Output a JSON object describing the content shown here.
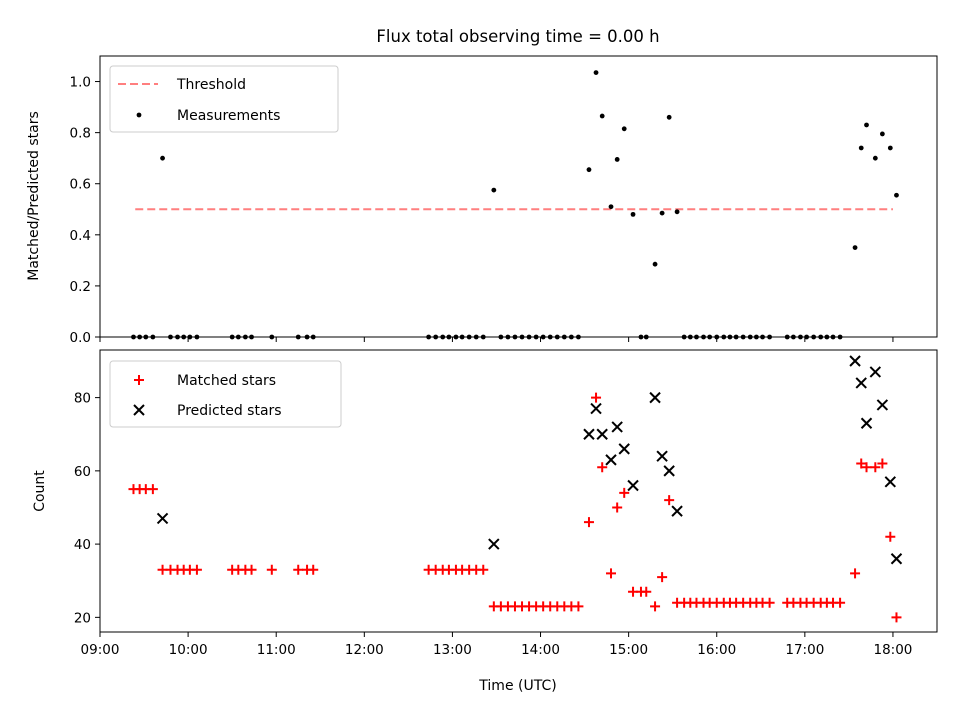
{
  "chart_data": {
    "title": "Flux total observing time = 0.00 h",
    "xlabel": "Time (UTC)",
    "x_unit": "hours UTC (decimal)",
    "xlim": [
      9.0,
      18.5
    ],
    "xticks": [
      9,
      10,
      11,
      12,
      13,
      14,
      15,
      16,
      17,
      18
    ],
    "xtick_labels": [
      "09:00",
      "10:00",
      "11:00",
      "12:00",
      "13:00",
      "14:00",
      "15:00",
      "16:00",
      "17:00",
      "18:00"
    ],
    "panels": [
      {
        "type": "scatter",
        "ylabel": "Matched/Predicted stars",
        "ylim": [
          0,
          1.1
        ],
        "yticks": [
          0.0,
          0.2,
          0.4,
          0.6,
          0.8,
          1.0
        ],
        "ytick_labels": [
          "0.0",
          "0.2",
          "0.4",
          "0.6",
          "0.8",
          "1.0"
        ],
        "legend": [
          "Threshold",
          "Measurements"
        ],
        "legend_position": "top-left",
        "threshold": {
          "name": "Threshold",
          "y": 0.5,
          "x_range": [
            9.4,
            18.0
          ],
          "color": "#ff7f7f",
          "style": "dashed"
        },
        "series": [
          {
            "name": "Measurements",
            "marker": "dot",
            "color": "#000000",
            "x": [
              9.38,
              9.45,
              9.52,
              9.6,
              9.71,
              9.8,
              9.88,
              9.95,
              10.02,
              10.1,
              10.5,
              10.57,
              10.65,
              10.72,
              10.95,
              11.25,
              11.35,
              11.42,
              12.73,
              12.81,
              12.89,
              12.96,
              13.04,
              13.11,
              13.19,
              13.27,
              13.35,
              13.47,
              13.55,
              13.63,
              13.71,
              13.79,
              13.87,
              13.95,
              14.03,
              14.11,
              14.19,
              14.27,
              14.35,
              14.43,
              14.55,
              14.63,
              14.7,
              14.8,
              14.87,
              14.95,
              15.05,
              15.14,
              15.2,
              15.3,
              15.38,
              15.46,
              15.55,
              15.63,
              15.7,
              15.77,
              15.85,
              15.92,
              16.0,
              16.08,
              16.15,
              16.22,
              16.3,
              16.38,
              16.45,
              16.52,
              16.6,
              16.8,
              16.87,
              16.95,
              17.02,
              17.1,
              17.18,
              17.25,
              17.32,
              17.4,
              17.57,
              17.64,
              17.7,
              17.8,
              17.88,
              17.97,
              18.04
            ],
            "y": [
              0,
              0,
              0,
              0,
              0.7,
              0,
              0,
              0,
              0,
              0,
              0,
              0,
              0,
              0,
              0,
              0,
              0,
              0,
              0,
              0,
              0,
              0,
              0,
              0,
              0,
              0,
              0,
              0.575,
              0,
              0,
              0,
              0,
              0,
              0,
              0,
              0,
              0,
              0,
              0,
              0,
              0.655,
              1.035,
              0.865,
              0.51,
              0.695,
              0.815,
              0.48,
              0,
              0,
              0.285,
              0.485,
              0.86,
              0.49,
              0,
              0,
              0,
              0,
              0,
              0,
              0,
              0,
              0,
              0,
              0,
              0,
              0,
              0,
              0,
              0,
              0,
              0,
              0,
              0,
              0,
              0,
              0,
              0.35,
              0.74,
              0.83,
              0.7,
              0.795,
              0.74,
              0.555
            ]
          }
        ]
      },
      {
        "type": "scatter",
        "ylabel": "Count",
        "ylim": [
          16,
          93
        ],
        "yticks": [
          20,
          40,
          60,
          80
        ],
        "ytick_labels": [
          "20",
          "40",
          "60",
          "80"
        ],
        "legend": [
          "Matched stars",
          "Predicted stars"
        ],
        "legend_position": "top-left",
        "series": [
          {
            "name": "Matched stars",
            "marker": "plus",
            "color": "#ff0000",
            "x": [
              9.38,
              9.45,
              9.52,
              9.6,
              9.71,
              9.8,
              9.88,
              9.95,
              10.02,
              10.1,
              10.5,
              10.57,
              10.65,
              10.72,
              10.95,
              11.25,
              11.35,
              11.42,
              12.73,
              12.81,
              12.89,
              12.96,
              13.04,
              13.11,
              13.19,
              13.27,
              13.35,
              13.47,
              13.55,
              13.63,
              13.71,
              13.79,
              13.87,
              13.95,
              14.03,
              14.11,
              14.19,
              14.27,
              14.35,
              14.43,
              14.55,
              14.63,
              14.7,
              14.8,
              14.87,
              14.95,
              15.05,
              15.14,
              15.2,
              15.3,
              15.38,
              15.46,
              15.55,
              15.63,
              15.7,
              15.77,
              15.85,
              15.92,
              16.0,
              16.08,
              16.15,
              16.22,
              16.3,
              16.38,
              16.45,
              16.52,
              16.6,
              16.8,
              16.87,
              16.95,
              17.02,
              17.1,
              17.18,
              17.25,
              17.32,
              17.4,
              17.57,
              17.64,
              17.7,
              17.8,
              17.88,
              17.97,
              18.04
            ],
            "y": [
              55,
              55,
              55,
              55,
              33,
              33,
              33,
              33,
              33,
              33,
              33,
              33,
              33,
              33,
              33,
              33,
              33,
              33,
              33,
              33,
              33,
              33,
              33,
              33,
              33,
              33,
              33,
              23,
              23,
              23,
              23,
              23,
              23,
              23,
              23,
              23,
              23,
              23,
              23,
              23,
              46,
              80,
              61,
              32,
              50,
              54,
              27,
              27,
              27,
              23,
              31,
              52,
              24,
              24,
              24,
              24,
              24,
              24,
              24,
              24,
              24,
              24,
              24,
              24,
              24,
              24,
              24,
              24,
              24,
              24,
              24,
              24,
              24,
              24,
              24,
              24,
              32,
              62,
              61,
              61,
              62,
              42,
              20
            ]
          },
          {
            "name": "Predicted stars",
            "marker": "x",
            "color": "#000000",
            "x": [
              9.71,
              13.47,
              14.55,
              14.63,
              14.7,
              14.8,
              14.87,
              14.95,
              15.05,
              15.3,
              15.38,
              15.46,
              15.55,
              17.57,
              17.64,
              17.7,
              17.8,
              17.88,
              17.97,
              18.04
            ],
            "y": [
              47,
              40,
              70,
              77,
              70,
              63,
              72,
              66,
              56,
              80,
              64,
              60,
              49,
              90,
              84,
              73,
              87,
              78,
              57,
              36
            ]
          }
        ]
      }
    ]
  }
}
